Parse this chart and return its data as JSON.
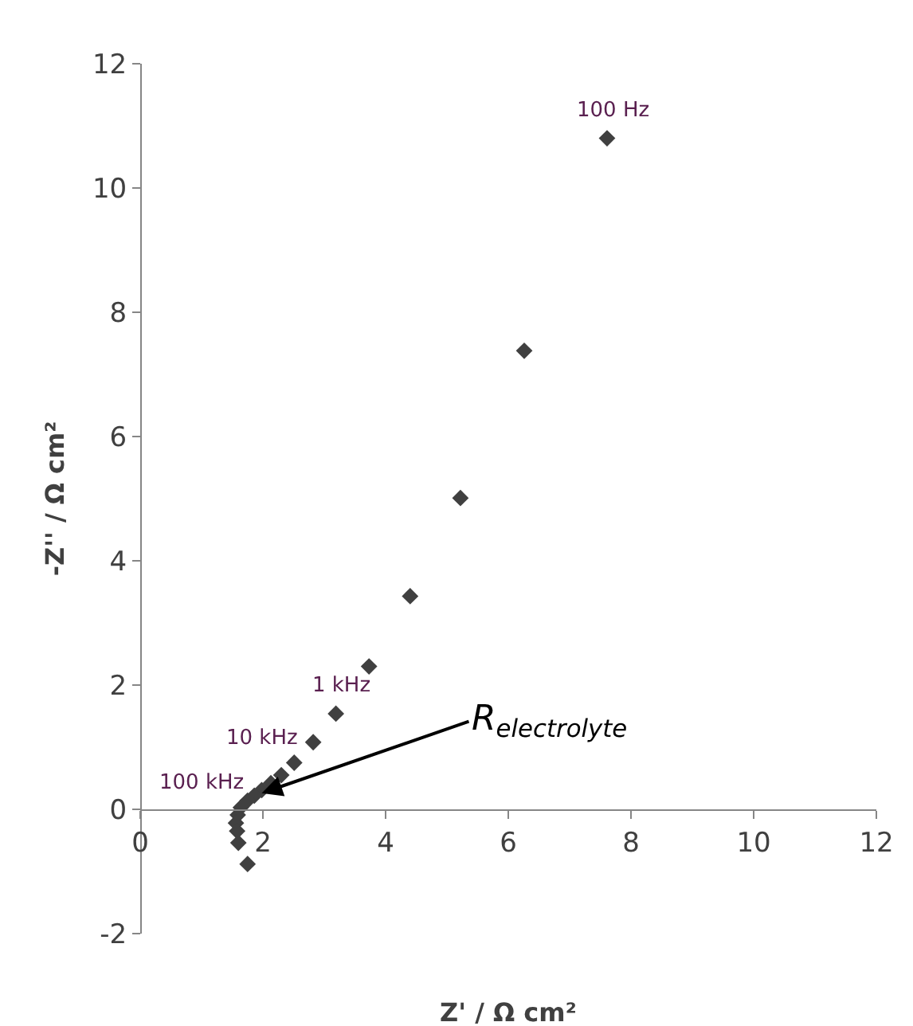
{
  "chart_data": {
    "type": "scatter",
    "xlabel": "Z' / Ω cm²",
    "ylabel": "-Z'' / Ω cm²",
    "x": [
      7.61,
      6.26,
      5.22,
      4.4,
      3.73,
      3.19,
      2.82,
      2.51,
      2.3,
      2.13,
      1.98,
      1.86,
      1.75,
      1.64,
      1.59,
      1.56,
      1.58,
      1.6,
      1.75
    ],
    "series": [
      {
        "color": "#404040",
        "values": [
          10.8,
          7.38,
          5.01,
          3.43,
          2.3,
          1.54,
          1.08,
          0.75,
          0.55,
          0.42,
          0.31,
          0.22,
          0.14,
          0.03,
          -0.09,
          -0.22,
          -0.35,
          -0.54,
          -0.88
        ]
      }
    ],
    "annotations": [
      {
        "text": "100 Hz",
        "x": 7.61,
        "y": 10.8
      },
      {
        "text": "1 kHz",
        "x": 3.19,
        "y": 1.54
      },
      {
        "text": "10 kHz",
        "x": 2.51,
        "y": 0.75
      },
      {
        "text": "100 kHz",
        "x": 1.64,
        "y": 0.03
      },
      {
        "text": "R$_{electrolyte}$",
        "x": 1.98,
        "y": 0.26
      }
    ],
    "xlim": [
      0,
      12
    ],
    "xticks": [
      0,
      2,
      4,
      6,
      8,
      10,
      12
    ],
    "ylim": [
      -2,
      12
    ],
    "yticks": [
      -2,
      0,
      2,
      4,
      6,
      8,
      10,
      12
    ],
    "marker": "diamond"
  }
}
